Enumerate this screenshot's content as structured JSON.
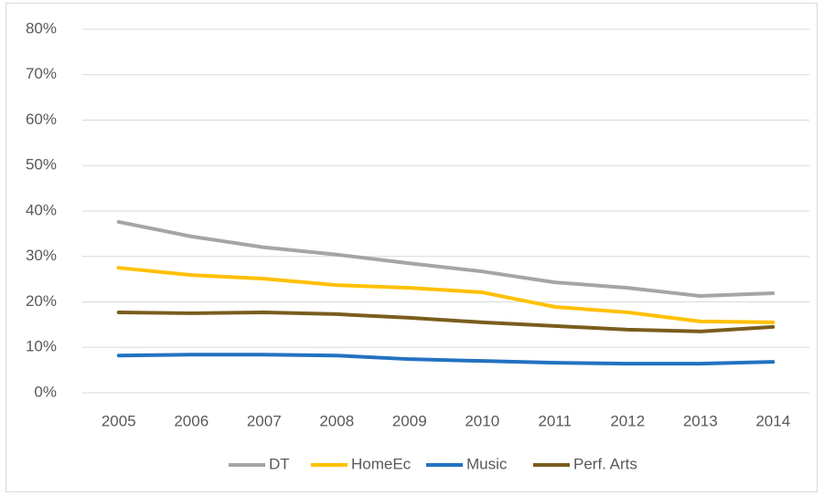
{
  "chart_data": {
    "type": "line",
    "categories": [
      "2005",
      "2006",
      "2007",
      "2008",
      "2009",
      "2010",
      "2011",
      "2012",
      "2013",
      "2014"
    ],
    "series": [
      {
        "name": "DT",
        "color": "#a5a5a5",
        "values": [
          37.6,
          34.4,
          32.0,
          30.4,
          28.5,
          26.7,
          24.3,
          23.1,
          21.3,
          21.9
        ]
      },
      {
        "name": "HomeEc",
        "color": "#ffc000",
        "values": [
          27.5,
          25.9,
          25.1,
          23.7,
          23.1,
          22.1,
          18.9,
          17.7,
          15.7,
          15.5
        ]
      },
      {
        "name": "Music",
        "color": "#2272c2",
        "values": [
          8.2,
          8.4,
          8.4,
          8.2,
          7.4,
          7.0,
          6.6,
          6.4,
          6.4,
          6.8
        ]
      },
      {
        "name": "Perf. Arts",
        "color": "#7a5c1e",
        "values": [
          17.7,
          17.5,
          17.7,
          17.3,
          16.5,
          15.5,
          14.7,
          13.9,
          13.5,
          14.5
        ]
      }
    ],
    "ylim": [
      0,
      80
    ],
    "yticks": [
      {
        "value": 0,
        "label": "0%"
      },
      {
        "value": 10,
        "label": "10%"
      },
      {
        "value": 20,
        "label": "20%"
      },
      {
        "value": 30,
        "label": "30%"
      },
      {
        "value": 40,
        "label": "40%"
      },
      {
        "value": 50,
        "label": "50%"
      },
      {
        "value": 60,
        "label": "60%"
      },
      {
        "value": 70,
        "label": "70%"
      },
      {
        "value": 80,
        "label": "80%"
      }
    ],
    "grid": true,
    "legend": "bottom"
  }
}
